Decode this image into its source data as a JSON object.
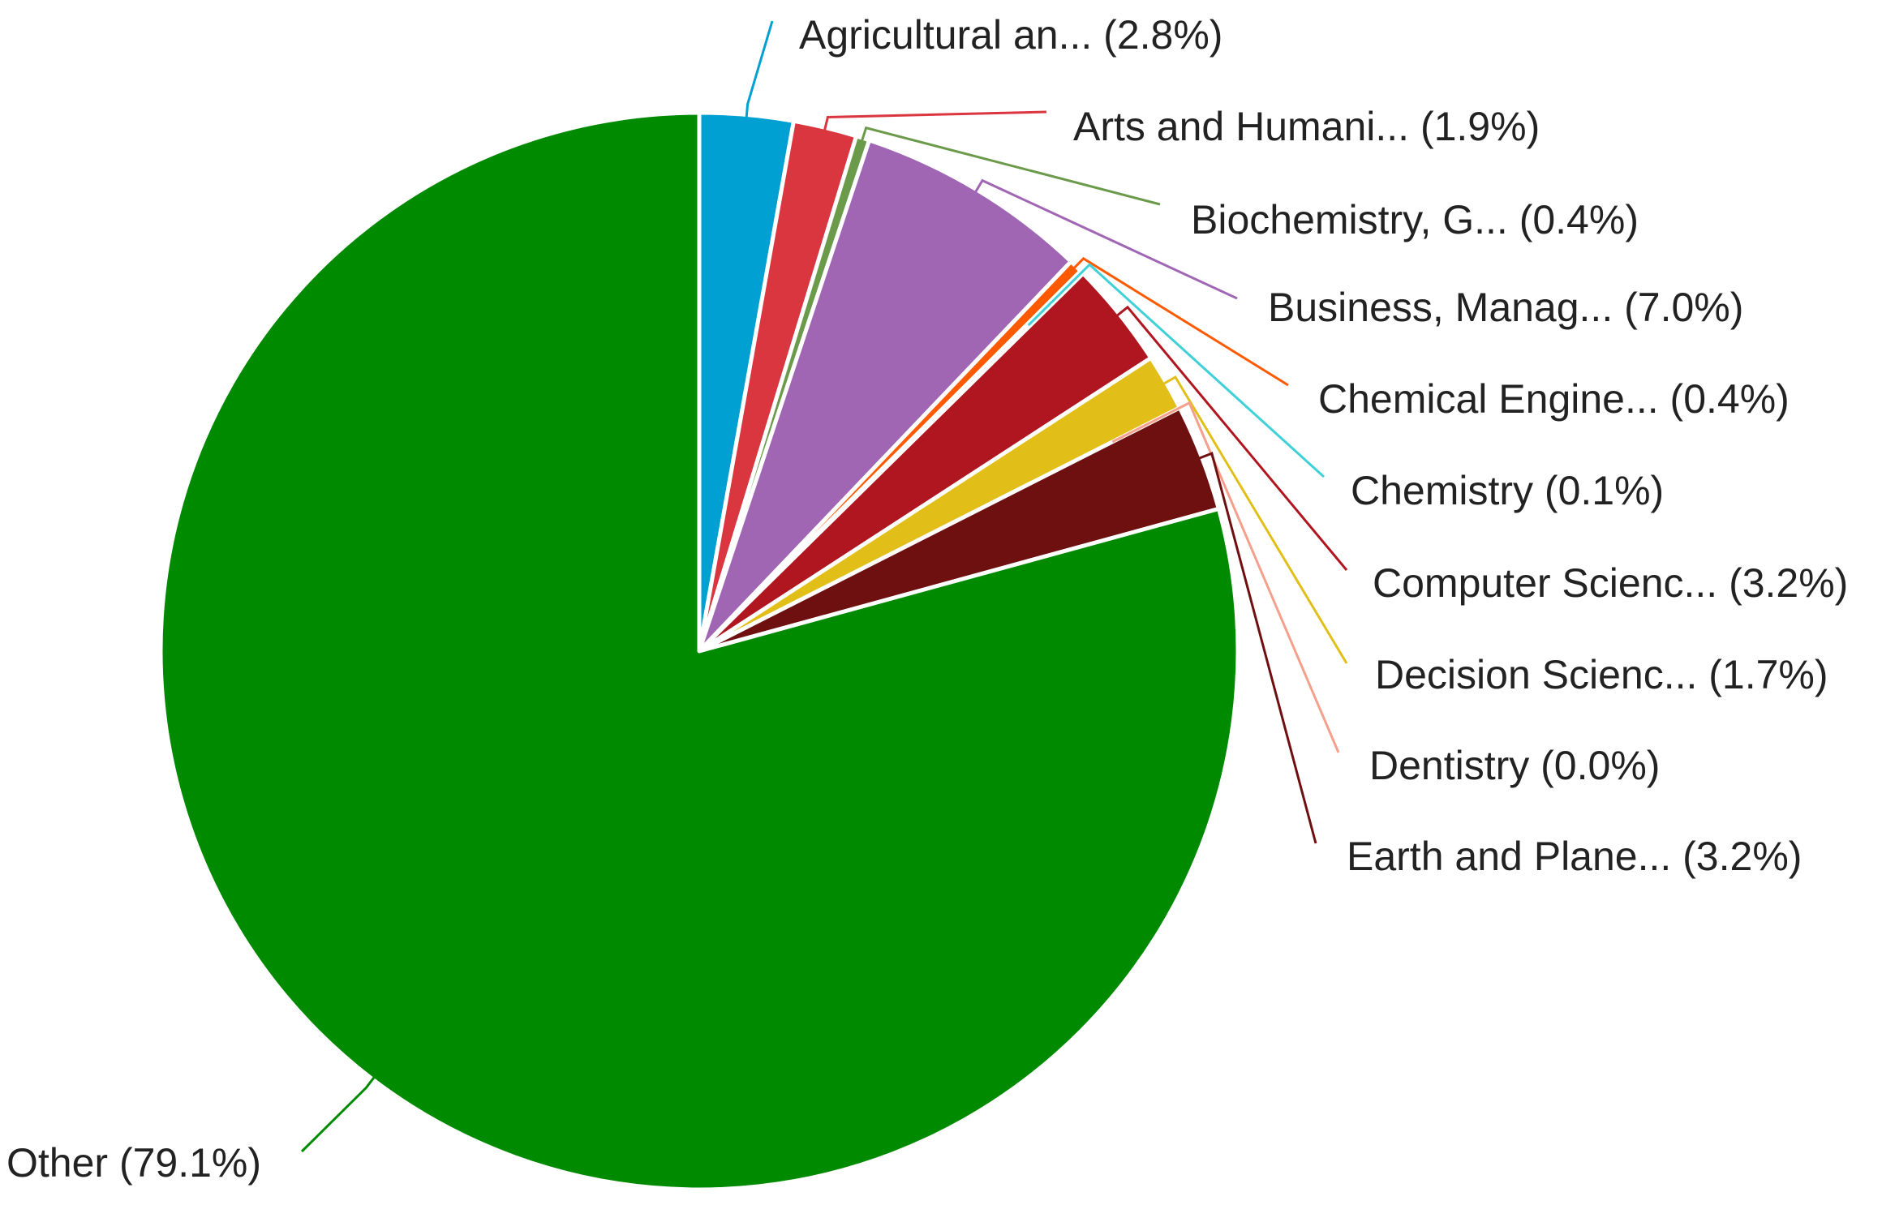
{
  "chart_data": {
    "type": "pie",
    "title": "",
    "start_angle": "12 o'clock",
    "direction": "clockwise",
    "slices": [
      {
        "label": "Agricultural an...",
        "value": 2.8,
        "display": "(2.8%)",
        "color": "#00a0d2"
      },
      {
        "label": "Arts and Humani...",
        "value": 1.9,
        "display": "(1.9%)",
        "color": "#d93640"
      },
      {
        "label": "Biochemistry, G...",
        "value": 0.4,
        "display": "(0.4%)",
        "color": "#6b9a4a"
      },
      {
        "label": "Business, Manag...",
        "value": 7.0,
        "display": "(7.0%)",
        "color": "#a066b4"
      },
      {
        "label": "Chemical Engine...",
        "value": 0.4,
        "display": "(0.4%)",
        "color": "#ff5a00"
      },
      {
        "label": "Chemistry",
        "value": 0.1,
        "display": "(0.1%)",
        "color": "#40d0d8"
      },
      {
        "label": "Computer Scienc...",
        "value": 3.2,
        "display": "(3.2%)",
        "color": "#b0161f"
      },
      {
        "label": "Decision Scienc...",
        "value": 1.7,
        "display": "(1.7%)",
        "color": "#e2bf18"
      },
      {
        "label": "Dentistry",
        "value": 0.0,
        "display": "(0.0%)",
        "color": "#f5a08c"
      },
      {
        "label": "Earth and Plane...",
        "value": 3.2,
        "display": "(3.2%)",
        "color": "#6e1010"
      },
      {
        "label": "Other",
        "value": 79.1,
        "display": "(79.1%)",
        "color": "#008a00"
      }
    ]
  }
}
